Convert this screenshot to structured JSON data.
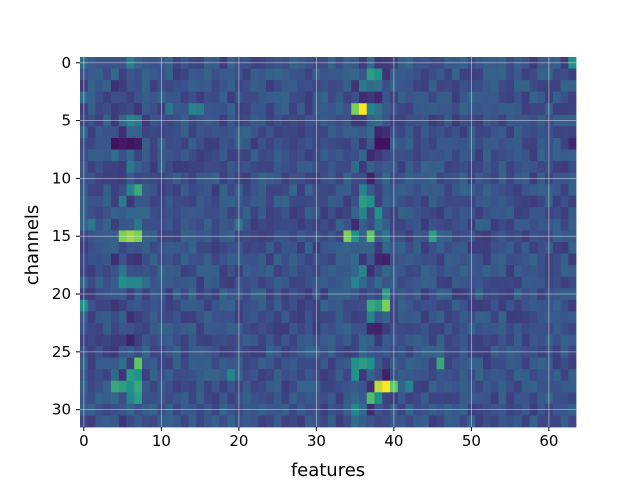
{
  "chart_data": {
    "type": "heatmap",
    "title": "",
    "xlabel": "features",
    "ylabel": "channels",
    "n_cols": 64,
    "n_rows": 32,
    "xticks": [
      0,
      10,
      20,
      30,
      40,
      50,
      60
    ],
    "yticks": [
      0,
      5,
      10,
      15,
      20,
      25,
      30
    ],
    "xlim": [
      -0.5,
      63.5
    ],
    "ylim": [
      31.5,
      -0.5
    ],
    "grid": true,
    "colormap": "viridis",
    "background_value": 0.25,
    "cells": [
      {
        "row": 0,
        "col": 0,
        "value": 0.35
      },
      {
        "row": 0,
        "col": 6,
        "value": 0.42
      },
      {
        "row": 0,
        "col": 63,
        "value": 0.5
      },
      {
        "row": 1,
        "col": 4,
        "value": 0.35
      },
      {
        "row": 1,
        "col": 37,
        "value": 0.55
      },
      {
        "row": 1,
        "col": 38,
        "value": 0.5
      },
      {
        "row": 2,
        "col": 36,
        "value": 0.4
      },
      {
        "row": 2,
        "col": 37,
        "value": 0.35
      },
      {
        "row": 3,
        "col": 0,
        "value": 0.35
      },
      {
        "row": 3,
        "col": 38,
        "value": 0.12
      },
      {
        "row": 4,
        "col": 11,
        "value": 0.38
      },
      {
        "row": 4,
        "col": 14,
        "value": 0.45
      },
      {
        "row": 4,
        "col": 15,
        "value": 0.42
      },
      {
        "row": 4,
        "col": 35,
        "value": 0.8
      },
      {
        "row": 4,
        "col": 36,
        "value": 1.0
      },
      {
        "row": 4,
        "col": 37,
        "value": 0.45
      },
      {
        "row": 5,
        "col": 6,
        "value": 0.45
      },
      {
        "row": 5,
        "col": 7,
        "value": 0.4
      },
      {
        "row": 5,
        "col": 38,
        "value": 0.35
      },
      {
        "row": 7,
        "col": 4,
        "value": 0.05
      },
      {
        "row": 7,
        "col": 5,
        "value": 0.08
      },
      {
        "row": 7,
        "col": 6,
        "value": 0.05
      },
      {
        "row": 7,
        "col": 7,
        "value": 0.08
      },
      {
        "row": 7,
        "col": 38,
        "value": 0.05
      },
      {
        "row": 7,
        "col": 39,
        "value": 0.05
      },
      {
        "row": 7,
        "col": 63,
        "value": 0.12
      },
      {
        "row": 9,
        "col": 6,
        "value": 0.4
      },
      {
        "row": 9,
        "col": 35,
        "value": 0.35
      },
      {
        "row": 10,
        "col": 37,
        "value": 0.1
      },
      {
        "row": 11,
        "col": 6,
        "value": 0.45
      },
      {
        "row": 11,
        "col": 7,
        "value": 0.6
      },
      {
        "row": 11,
        "col": 36,
        "value": 0.45
      },
      {
        "row": 12,
        "col": 5,
        "value": 0.4
      },
      {
        "row": 12,
        "col": 36,
        "value": 0.55
      },
      {
        "row": 12,
        "col": 37,
        "value": 0.5
      },
      {
        "row": 13,
        "col": 36,
        "value": 0.45
      },
      {
        "row": 13,
        "col": 38,
        "value": 0.5
      },
      {
        "row": 14,
        "col": 1,
        "value": 0.4
      },
      {
        "row": 14,
        "col": 7,
        "value": 0.4
      },
      {
        "row": 14,
        "col": 20,
        "value": 0.4
      },
      {
        "row": 15,
        "col": 5,
        "value": 0.8
      },
      {
        "row": 15,
        "col": 6,
        "value": 0.85
      },
      {
        "row": 15,
        "col": 7,
        "value": 0.8
      },
      {
        "row": 15,
        "col": 34,
        "value": 0.8
      },
      {
        "row": 15,
        "col": 35,
        "value": 0.5
      },
      {
        "row": 15,
        "col": 37,
        "value": 0.75
      },
      {
        "row": 15,
        "col": 39,
        "value": 0.4
      },
      {
        "row": 15,
        "col": 45,
        "value": 0.55
      },
      {
        "row": 17,
        "col": 38,
        "value": 0.12
      },
      {
        "row": 17,
        "col": 39,
        "value": 0.1
      },
      {
        "row": 18,
        "col": 5,
        "value": 0.4
      },
      {
        "row": 18,
        "col": 36,
        "value": 0.45
      },
      {
        "row": 19,
        "col": 5,
        "value": 0.5
      },
      {
        "row": 19,
        "col": 6,
        "value": 0.45
      },
      {
        "row": 19,
        "col": 7,
        "value": 0.45
      },
      {
        "row": 19,
        "col": 35,
        "value": 0.45
      },
      {
        "row": 19,
        "col": 38,
        "value": 0.35
      },
      {
        "row": 20,
        "col": 39,
        "value": 0.55
      },
      {
        "row": 21,
        "col": 0,
        "value": 0.5
      },
      {
        "row": 21,
        "col": 37,
        "value": 0.6
      },
      {
        "row": 21,
        "col": 38,
        "value": 0.55
      },
      {
        "row": 21,
        "col": 39,
        "value": 0.8
      },
      {
        "row": 22,
        "col": 37,
        "value": 0.45
      },
      {
        "row": 23,
        "col": 37,
        "value": 0.12
      },
      {
        "row": 23,
        "col": 38,
        "value": 0.1
      },
      {
        "row": 24,
        "col": 6,
        "value": 0.1
      },
      {
        "row": 26,
        "col": 7,
        "value": 0.75
      },
      {
        "row": 26,
        "col": 35,
        "value": 0.5
      },
      {
        "row": 26,
        "col": 36,
        "value": 0.55
      },
      {
        "row": 26,
        "col": 37,
        "value": 0.5
      },
      {
        "row": 26,
        "col": 46,
        "value": 0.6
      },
      {
        "row": 27,
        "col": 6,
        "value": 0.55
      },
      {
        "row": 27,
        "col": 7,
        "value": 0.5
      },
      {
        "row": 27,
        "col": 19,
        "value": 0.45
      },
      {
        "row": 27,
        "col": 35,
        "value": 0.5
      },
      {
        "row": 27,
        "col": 39,
        "value": 0.1
      },
      {
        "row": 28,
        "col": 4,
        "value": 0.6
      },
      {
        "row": 28,
        "col": 5,
        "value": 0.55
      },
      {
        "row": 28,
        "col": 6,
        "value": 0.5
      },
      {
        "row": 28,
        "col": 7,
        "value": 0.6
      },
      {
        "row": 28,
        "col": 38,
        "value": 0.9
      },
      {
        "row": 28,
        "col": 39,
        "value": 1.0
      },
      {
        "row": 28,
        "col": 40,
        "value": 0.75
      },
      {
        "row": 28,
        "col": 42,
        "value": 0.45
      },
      {
        "row": 29,
        "col": 6,
        "value": 0.45
      },
      {
        "row": 29,
        "col": 7,
        "value": 0.55
      },
      {
        "row": 29,
        "col": 37,
        "value": 0.7
      },
      {
        "row": 29,
        "col": 38,
        "value": 0.5
      },
      {
        "row": 30,
        "col": 35,
        "value": 0.45
      },
      {
        "row": 30,
        "col": 36,
        "value": 0.35
      },
      {
        "row": 31,
        "col": 35,
        "value": 0.35
      }
    ]
  }
}
